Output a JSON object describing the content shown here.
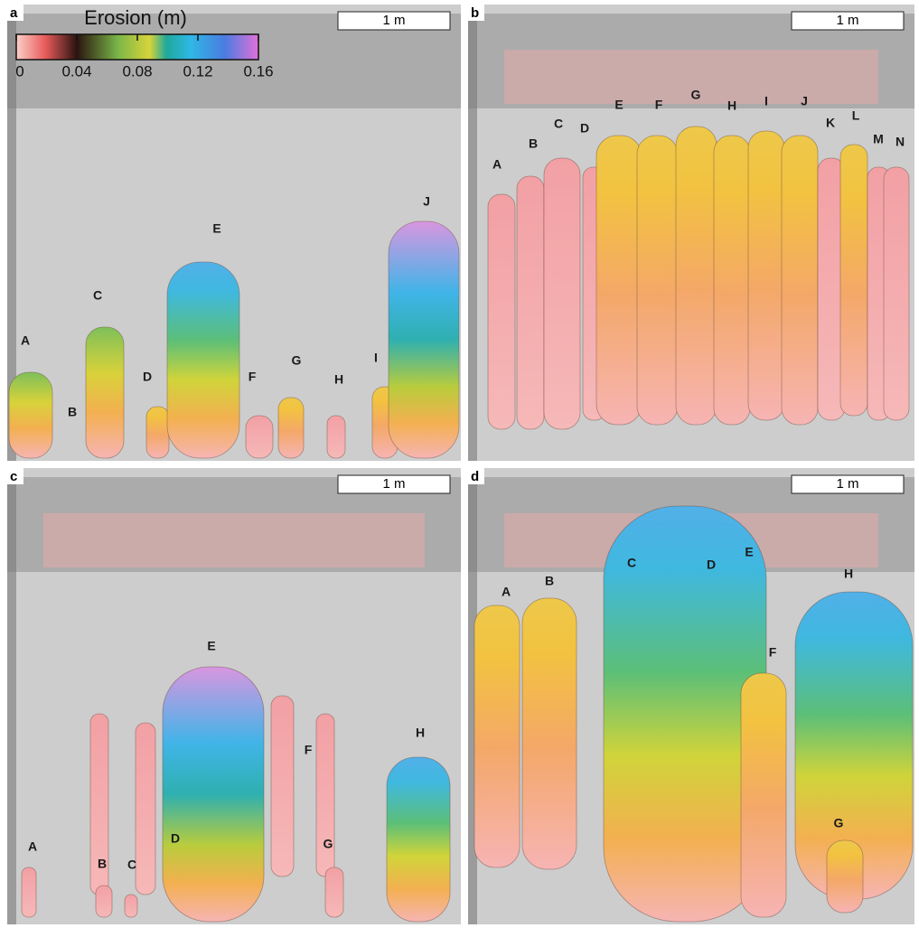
{
  "colorbar": {
    "title": "Erosion (m)",
    "lim": [
      0,
      0.16
    ],
    "ticks": [
      0,
      0.04,
      0.08,
      0.12,
      0.16
    ]
  },
  "panels": [
    {
      "letter": "a",
      "scale_bar": "1 m",
      "labels": [
        "A",
        "B",
        "C",
        "D",
        "E",
        "F",
        "G",
        "H",
        "I",
        "J"
      ]
    },
    {
      "letter": "b",
      "scale_bar": "1 m",
      "labels": [
        "A",
        "B",
        "C",
        "D",
        "E",
        "F",
        "G",
        "H",
        "I",
        "J",
        "K",
        "L",
        "M",
        "N"
      ]
    },
    {
      "letter": "c",
      "scale_bar": "1 m",
      "labels": [
        "E",
        "F",
        "H",
        "A",
        "B",
        "C",
        "D",
        "G"
      ]
    },
    {
      "letter": "d",
      "scale_bar": "1 m",
      "labels": [
        "A",
        "B",
        "C",
        "D",
        "E",
        "F",
        "H",
        "G"
      ]
    }
  ]
}
